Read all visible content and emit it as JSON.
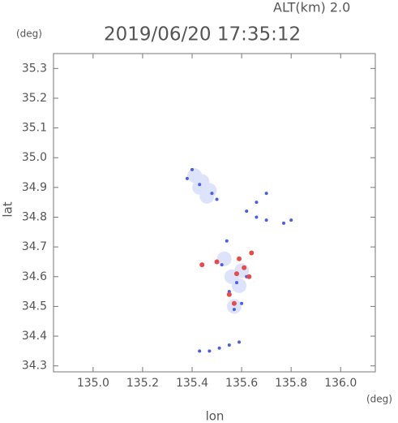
{
  "chart_data": {
    "type": "scatter",
    "title": "2019/06/20 17:35:12",
    "subtitle": "ALT(km) 2.0",
    "y_unit": "(deg)",
    "x_unit": "(deg)",
    "xlabel": "lon",
    "ylabel": "lat",
    "xlim": [
      134.84,
      136.14
    ],
    "ylim": [
      34.28,
      35.35
    ],
    "xticks": [
      {
        "value": 135.0,
        "label": "135.0"
      },
      135.2,
      135.4,
      135.6,
      135.8,
      {
        "value": 136.0,
        "label": "136.0"
      }
    ],
    "yticks": [
      34.3,
      34.4,
      34.5,
      34.6,
      34.7,
      34.8,
      34.9,
      {
        "value": 35.0,
        "label": "35.0"
      },
      35.1,
      35.2,
      35.3
    ],
    "series": [
      {
        "color": "#dde3fb",
        "marker_size": 9,
        "x": [
          135.41,
          135.44,
          135.47,
          135.43,
          135.46,
          135.56,
          135.59,
          135.53,
          135.6,
          135.57
        ],
        "y": [
          34.94,
          34.92,
          34.89,
          34.9,
          34.87,
          34.6,
          34.57,
          34.66,
          34.62,
          34.5
        ]
      },
      {
        "color": "#4a5de8",
        "marker_size": 2,
        "x": [
          135.4,
          135.43,
          135.48,
          135.5,
          135.38,
          135.62,
          135.66,
          135.7,
          135.77,
          135.8,
          135.54,
          135.52,
          135.58,
          135.62,
          135.55,
          135.57,
          135.6,
          135.43,
          135.47,
          135.51,
          135.55,
          135.59,
          135.7,
          135.66
        ],
        "y": [
          34.96,
          34.91,
          34.88,
          34.86,
          34.93,
          34.82,
          34.8,
          34.79,
          34.78,
          34.79,
          34.72,
          34.64,
          34.58,
          34.6,
          34.55,
          34.49,
          34.51,
          34.35,
          34.35,
          34.36,
          34.37,
          34.38,
          34.88,
          34.85
        ]
      },
      {
        "color": "#e84a4a",
        "marker_size": 3,
        "x": [
          135.58,
          135.61,
          135.63,
          135.55,
          135.5,
          135.59,
          135.44,
          135.57,
          135.64
        ],
        "y": [
          34.61,
          34.63,
          34.6,
          34.54,
          34.65,
          34.66,
          34.64,
          34.51,
          34.68
        ]
      }
    ]
  }
}
